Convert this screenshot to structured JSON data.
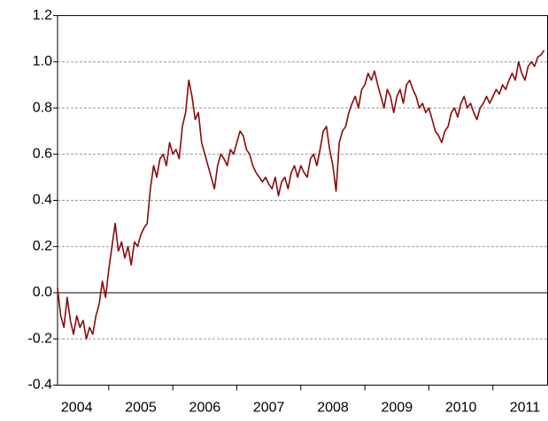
{
  "chart_data": {
    "type": "line",
    "x": [
      2004.2,
      2004.25,
      2004.3,
      2004.35,
      2004.4,
      2004.45,
      2004.5,
      2004.55,
      2004.6,
      2004.65,
      2004.7,
      2004.75,
      2004.8,
      2004.85,
      2004.9,
      2004.95,
      2005.0,
      2005.05,
      2005.1,
      2005.15,
      2005.2,
      2005.25,
      2005.3,
      2005.35,
      2005.4,
      2005.45,
      2005.5,
      2005.55,
      2005.6,
      2005.65,
      2005.7,
      2005.75,
      2005.8,
      2005.85,
      2005.9,
      2005.95,
      2006.0,
      2006.05,
      2006.1,
      2006.15,
      2006.2,
      2006.25,
      2006.3,
      2006.35,
      2006.4,
      2006.45,
      2006.5,
      2006.55,
      2006.6,
      2006.65,
      2006.7,
      2006.75,
      2006.8,
      2006.85,
      2006.9,
      2006.95,
      2007.0,
      2007.05,
      2007.1,
      2007.15,
      2007.2,
      2007.25,
      2007.3,
      2007.35,
      2007.4,
      2007.45,
      2007.5,
      2007.55,
      2007.6,
      2007.65,
      2007.7,
      2007.75,
      2007.8,
      2007.85,
      2007.9,
      2007.95,
      2008.0,
      2008.05,
      2008.1,
      2008.15,
      2008.2,
      2008.25,
      2008.3,
      2008.35,
      2008.4,
      2008.45,
      2008.5,
      2008.55,
      2008.6,
      2008.65,
      2008.7,
      2008.75,
      2008.8,
      2008.85,
      2008.9,
      2008.95,
      2009.0,
      2009.05,
      2009.1,
      2009.15,
      2009.2,
      2009.25,
      2009.3,
      2009.35,
      2009.4,
      2009.45,
      2009.5,
      2009.55,
      2009.6,
      2009.65,
      2009.7,
      2009.75,
      2009.8,
      2009.85,
      2009.9,
      2009.95,
      2010.0,
      2010.05,
      2010.1,
      2010.15,
      2010.2,
      2010.25,
      2010.3,
      2010.35,
      2010.4,
      2010.45,
      2010.5,
      2010.55,
      2010.6,
      2010.65,
      2010.7,
      2010.75,
      2010.8,
      2010.85,
      2010.9,
      2010.95,
      2011.0,
      2011.05,
      2011.1,
      2011.15,
      2011.2,
      2011.25,
      2011.3,
      2011.35,
      2011.4,
      2011.45,
      2011.5,
      2011.55,
      2011.6,
      2011.65,
      2011.7,
      2011.75,
      2011.8
    ],
    "series": [
      {
        "color": "#8b0a0a",
        "values": [
          0.02,
          -0.1,
          -0.15,
          -0.02,
          -0.12,
          -0.18,
          -0.1,
          -0.15,
          -0.12,
          -0.2,
          -0.15,
          -0.18,
          -0.1,
          -0.05,
          0.05,
          -0.02,
          0.1,
          0.2,
          0.3,
          0.18,
          0.22,
          0.15,
          0.2,
          0.12,
          0.22,
          0.2,
          0.25,
          0.28,
          0.3,
          0.45,
          0.55,
          0.5,
          0.58,
          0.6,
          0.55,
          0.65,
          0.6,
          0.62,
          0.58,
          0.72,
          0.78,
          0.92,
          0.85,
          0.75,
          0.78,
          0.65,
          0.6,
          0.55,
          0.5,
          0.45,
          0.55,
          0.6,
          0.58,
          0.55,
          0.62,
          0.6,
          0.65,
          0.7,
          0.68,
          0.62,
          0.6,
          0.55,
          0.52,
          0.5,
          0.48,
          0.5,
          0.47,
          0.45,
          0.5,
          0.42,
          0.48,
          0.5,
          0.45,
          0.52,
          0.55,
          0.5,
          0.55,
          0.52,
          0.5,
          0.58,
          0.6,
          0.55,
          0.62,
          0.7,
          0.72,
          0.62,
          0.55,
          0.44,
          0.65,
          0.7,
          0.72,
          0.78,
          0.82,
          0.85,
          0.8,
          0.88,
          0.9,
          0.95,
          0.92,
          0.96,
          0.9,
          0.85,
          0.8,
          0.88,
          0.85,
          0.78,
          0.85,
          0.88,
          0.82,
          0.9,
          0.92,
          0.88,
          0.85,
          0.8,
          0.82,
          0.78,
          0.8,
          0.75,
          0.7,
          0.68,
          0.65,
          0.7,
          0.72,
          0.78,
          0.8,
          0.76,
          0.82,
          0.85,
          0.8,
          0.82,
          0.78,
          0.75,
          0.8,
          0.82,
          0.85,
          0.82,
          0.85,
          0.88,
          0.86,
          0.9,
          0.88,
          0.92,
          0.95,
          0.92,
          1.0,
          0.95,
          0.92,
          0.98,
          1.0,
          0.98,
          1.02,
          1.03,
          1.05
        ]
      }
    ],
    "xlim": [
      2004.2,
      2011.86
    ],
    "xticks": [
      {
        "value": 2004.5,
        "label": "2004"
      },
      {
        "value": 2005.5,
        "label": "2005"
      },
      {
        "value": 2006.5,
        "label": "2006"
      },
      {
        "value": 2007.5,
        "label": "2007"
      },
      {
        "value": 2008.5,
        "label": "2008"
      },
      {
        "value": 2009.5,
        "label": "2009"
      },
      {
        "value": 2010.5,
        "label": "2010"
      },
      {
        "value": 2011.5,
        "label": "2011"
      }
    ],
    "ylim": [
      -0.4,
      1.2
    ],
    "yticks": [
      -0.4,
      -0.2,
      {
        "value": 0,
        "label": "0.0"
      },
      0.2,
      0.4,
      0.6,
      0.8,
      {
        "value": 1,
        "label": "1.0"
      },
      1.2
    ],
    "grid": true,
    "zero_line": true
  }
}
